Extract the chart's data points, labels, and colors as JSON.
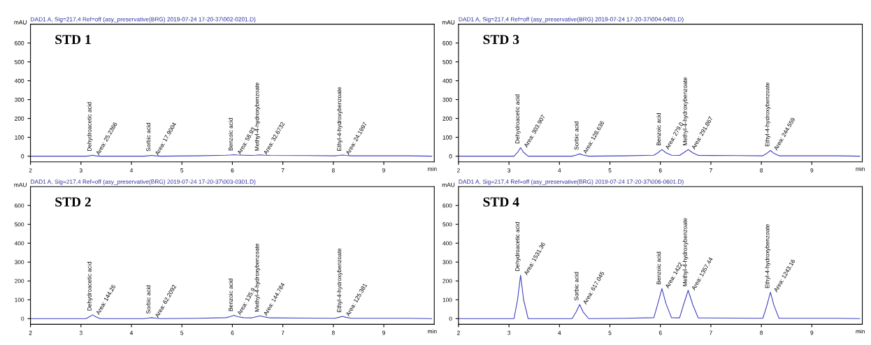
{
  "chart_data": [
    {
      "type": "line",
      "title": "DAD1 A, Sig=217,4 Ref=off (asy_preservative(BRG) 2019-07-24 17-20-37\\002-0201.D)",
      "subtitle": "STD 1",
      "xlabel": "min",
      "ylabel": "mAU",
      "xlim": [
        2,
        10
      ],
      "xticks": [
        2,
        3,
        4,
        5,
        6,
        7,
        8,
        9
      ],
      "ylim": [
        -30,
        700
      ],
      "yticks": [
        0,
        100,
        200,
        300,
        400,
        500,
        600
      ],
      "grid": false,
      "legend": false,
      "series": [
        {
          "color": "#4040c0",
          "x": [
            2.0,
            3.1,
            3.17,
            3.23,
            3.29,
            3.38,
            4.25,
            4.33,
            4.4,
            4.47,
            4.58,
            5.3,
            5.87,
            5.95,
            6.03,
            6.11,
            6.22,
            6.38,
            6.46,
            6.55,
            6.64,
            6.75,
            7.5,
            8.03,
            8.11,
            8.18,
            8.25,
            8.35,
            9.5,
            9.95
          ],
          "values": [
            0,
            0,
            2,
            5,
            2,
            0,
            0,
            2,
            4,
            2,
            0,
            2,
            5,
            6,
            8,
            6,
            5,
            4,
            5,
            7,
            5,
            4,
            3,
            2,
            4,
            6,
            4,
            2,
            2,
            0
          ]
        }
      ],
      "annotations": [
        {
          "text": "Dehydroacetic acid",
          "x": 3.23,
          "y": 5
        },
        {
          "text": "Area: 25.2366",
          "x": 3.23,
          "y": 5
        },
        {
          "text": "Sorbic acid",
          "x": 4.4,
          "y": 4
        },
        {
          "text": "Area: 17.9004",
          "x": 4.4,
          "y": 4
        },
        {
          "text": "Benzoic acid",
          "x": 6.03,
          "y": 8
        },
        {
          "text": "Area: 58.93",
          "x": 6.03,
          "y": 8
        },
        {
          "text": "Methyl-4-hydroxybenzoate",
          "x": 6.55,
          "y": 7
        },
        {
          "text": "Area: 32.6732",
          "x": 6.55,
          "y": 7
        },
        {
          "text": "Ethyl-4-hydroxybenzoate",
          "x": 8.18,
          "y": 6
        },
        {
          "text": "Area: 24.1997",
          "x": 8.18,
          "y": 6
        }
      ]
    },
    {
      "type": "line",
      "title": "DAD1 A, Sig=217,4 Ref=off (asy_preservative(BRG) 2019-07-24 17-20-37\\004-0401.D)",
      "subtitle": "STD 3",
      "xlabel": "min",
      "ylabel": "mAU",
      "xlim": [
        2,
        10
      ],
      "xticks": [
        2,
        3,
        4,
        5,
        6,
        7,
        8,
        9
      ],
      "ylim": [
        -30,
        700
      ],
      "yticks": [
        0,
        100,
        200,
        300,
        400,
        500,
        600
      ],
      "grid": false,
      "legend": false,
      "series": [
        {
          "color": "#4040c0",
          "x": [
            2.0,
            3.1,
            3.17,
            3.23,
            3.29,
            3.38,
            4.25,
            4.33,
            4.4,
            4.47,
            4.58,
            5.3,
            5.87,
            5.95,
            6.03,
            6.11,
            6.22,
            6.38,
            6.46,
            6.55,
            6.64,
            6.75,
            7.5,
            8.03,
            8.11,
            8.18,
            8.25,
            8.35,
            9.5,
            9.95
          ],
          "values": [
            0,
            0,
            20,
            45,
            20,
            0,
            0,
            6,
            12,
            6,
            0,
            2,
            5,
            18,
            35,
            18,
            5,
            4,
            18,
            35,
            18,
            4,
            3,
            2,
            15,
            30,
            15,
            2,
            2,
            0
          ]
        }
      ],
      "annotations": [
        {
          "text": "Dehydroacetic acid",
          "x": 3.23,
          "y": 45
        },
        {
          "text": "Area: 303.907",
          "x": 3.23,
          "y": 45
        },
        {
          "text": "Sorbic acid",
          "x": 4.4,
          "y": 12
        },
        {
          "text": "Area: 128.636",
          "x": 4.4,
          "y": 12
        },
        {
          "text": "Benzoic acid",
          "x": 6.03,
          "y": 35
        },
        {
          "text": "Area: 279.0",
          "x": 6.03,
          "y": 35
        },
        {
          "text": "Methyl-4-hydroxybenzoate",
          "x": 6.55,
          "y": 35
        },
        {
          "text": "Area: 291.867",
          "x": 6.55,
          "y": 35
        },
        {
          "text": "Ethyl-4-hydroxybenzoate",
          "x": 8.18,
          "y": 30
        },
        {
          "text": "Area: 244.559",
          "x": 8.18,
          "y": 30
        }
      ]
    },
    {
      "type": "line",
      "title": "DAD1 A, Sig=217,4 Ref=off (asy_preservative(BRG) 2019-07-24 17-20-37\\003-0301.D)",
      "subtitle": "STD 2",
      "xlabel": "min",
      "ylabel": "mAU",
      "xlim": [
        2,
        10
      ],
      "xticks": [
        2,
        3,
        4,
        5,
        6,
        7,
        8,
        9
      ],
      "ylim": [
        -30,
        700
      ],
      "yticks": [
        0,
        100,
        200,
        300,
        400,
        500,
        600
      ],
      "grid": false,
      "legend": false,
      "series": [
        {
          "color": "#4040c0",
          "x": [
            2.0,
            3.1,
            3.17,
            3.23,
            3.29,
            3.38,
            4.25,
            4.33,
            4.4,
            4.47,
            4.58,
            5.3,
            5.87,
            5.95,
            6.03,
            6.11,
            6.22,
            6.38,
            6.46,
            6.55,
            6.64,
            6.75,
            7.5,
            8.03,
            8.11,
            8.18,
            8.25,
            8.35,
            9.5,
            9.95
          ],
          "values": [
            0,
            0,
            10,
            20,
            10,
            0,
            0,
            3,
            5,
            3,
            0,
            2,
            5,
            10,
            18,
            10,
            5,
            4,
            9,
            15,
            9,
            4,
            3,
            2,
            7,
            12,
            7,
            2,
            2,
            0
          ]
        }
      ],
      "annotations": [
        {
          "text": "Dehydroacetic acid",
          "x": 3.23,
          "y": 20
        },
        {
          "text": "Area: 144.26",
          "x": 3.23,
          "y": 20
        },
        {
          "text": "Sorbic acid",
          "x": 4.4,
          "y": 5
        },
        {
          "text": "Area: 62.2092",
          "x": 4.4,
          "y": 5
        },
        {
          "text": "Benzoic acid",
          "x": 6.03,
          "y": 18
        },
        {
          "text": "Area: 135.9",
          "x": 6.03,
          "y": 18
        },
        {
          "text": "Methyl-4-hydroxybenzoate",
          "x": 6.55,
          "y": 15
        },
        {
          "text": "Area: 144.784",
          "x": 6.55,
          "y": 15
        },
        {
          "text": "Ethyl-4-hydroxybenzoate",
          "x": 8.18,
          "y": 12
        },
        {
          "text": "Area: 125.381",
          "x": 8.18,
          "y": 12
        }
      ]
    },
    {
      "type": "line",
      "title": "DAD1 A, Sig=217,4 Ref=off (asy_preservative(BRG) 2019-07-24 17-20-37\\006-0601.D)",
      "subtitle": "STD 4",
      "xlabel": "min",
      "ylabel": "mAU",
      "xlim": [
        2,
        10
      ],
      "xticks": [
        2,
        3,
        4,
        5,
        6,
        7,
        8,
        9
      ],
      "ylim": [
        -30,
        700
      ],
      "yticks": [
        0,
        100,
        200,
        300,
        400,
        500,
        600
      ],
      "grid": false,
      "legend": false,
      "series": [
        {
          "color": "#4040c0",
          "x": [
            2.0,
            3.1,
            3.17,
            3.23,
            3.29,
            3.38,
            4.25,
            4.33,
            4.4,
            4.47,
            4.58,
            5.3,
            5.87,
            5.95,
            6.03,
            6.11,
            6.22,
            6.38,
            6.46,
            6.55,
            6.64,
            6.75,
            7.5,
            8.03,
            8.11,
            8.18,
            8.25,
            8.35,
            9.5,
            9.95
          ],
          "values": [
            0,
            0,
            100,
            230,
            100,
            0,
            0,
            35,
            75,
            35,
            0,
            2,
            5,
            80,
            160,
            80,
            5,
            4,
            75,
            150,
            75,
            4,
            3,
            2,
            70,
            140,
            70,
            2,
            2,
            0
          ]
        }
      ],
      "annotations": [
        {
          "text": "Dehydroacetic acid",
          "x": 3.23,
          "y": 230
        },
        {
          "text": "Area: 1531.36",
          "x": 3.23,
          "y": 230
        },
        {
          "text": "Sorbic acid",
          "x": 4.4,
          "y": 75
        },
        {
          "text": "Area: 617.045",
          "x": 4.4,
          "y": 75
        },
        {
          "text": "Benzoic acid",
          "x": 6.03,
          "y": 160
        },
        {
          "text": "Area: 1422",
          "x": 6.03,
          "y": 160
        },
        {
          "text": "Methyl-4-hydroxybenzoate",
          "x": 6.55,
          "y": 150
        },
        {
          "text": "Area: 1357.44",
          "x": 6.55,
          "y": 150
        },
        {
          "text": "Ethyl-4-hydroxybenzoate",
          "x": 8.18,
          "y": 140
        },
        {
          "text": "Area: 1243.16",
          "x": 8.18,
          "y": 140
        }
      ]
    }
  ]
}
